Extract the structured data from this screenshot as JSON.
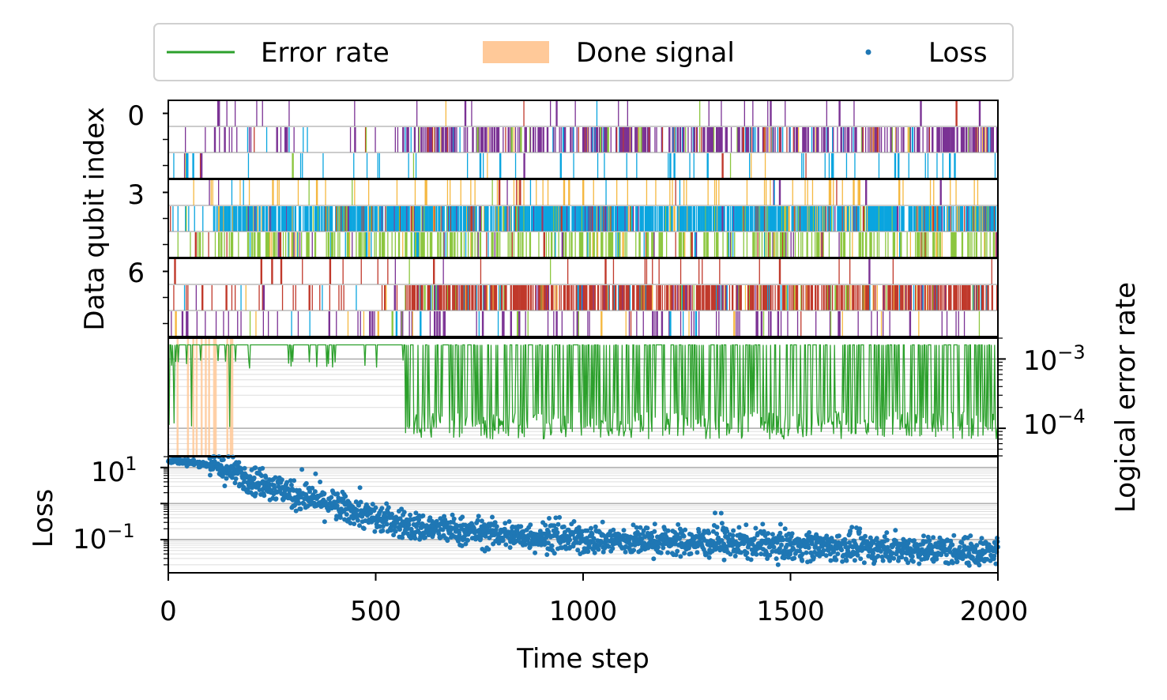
{
  "chart_data": [
    {
      "type": "raster",
      "panel": "data-qubit-activity",
      "ylabel": "Data qubit index",
      "yticks": [
        "0",
        "3",
        "6"
      ],
      "rows": 9,
      "xlim": [
        0,
        2000
      ],
      "category_colors": [
        "#7b3294",
        "#c0392b",
        "#f5b841",
        "#8cc63f",
        "#0aa5df"
      ],
      "rows_summary": [
        {
          "row": 0,
          "density": 0.03,
          "dominant": "#7b3294"
        },
        {
          "row": 1,
          "density": 0.55,
          "dominant": "#7b3294",
          "dense_from": 570
        },
        {
          "row": 2,
          "density": 0.06,
          "dominant": "#0aa5df"
        },
        {
          "row": 3,
          "density": 0.07,
          "dominant": "#f5b841"
        },
        {
          "row": 4,
          "density": 0.85,
          "dominant": "#0aa5df",
          "dense_from": 120
        },
        {
          "row": 5,
          "density": 0.35,
          "dominant": "#8cc63f",
          "dense_from": 120
        },
        {
          "row": 6,
          "density": 0.03,
          "dominant": "#c0392b"
        },
        {
          "row": 7,
          "density": 0.7,
          "dominant": "#c0392b",
          "dense_from": 570
        },
        {
          "row": 8,
          "density": 0.12,
          "dominant": "#7b3294"
        }
      ]
    },
    {
      "type": "line",
      "panel": "logical-error-rate",
      "ylabel": "Logical error rate",
      "yscale": "log",
      "ylim": [
        4e-05,
        0.002
      ],
      "yticks": [
        {
          "value": 0.001,
          "base": "10",
          "exp": "−3"
        },
        {
          "value": 0.0001,
          "base": "10",
          "exp": "−4"
        }
      ],
      "series": [
        {
          "name": "Error rate",
          "color": "#2ca02c",
          "upper": 0.0016,
          "phase1_low": 0.0008,
          "phase1_end": 570,
          "phase2_low": 0.0001
        }
      ],
      "done_signal": {
        "name": "Done signal",
        "color": "#ffc999",
        "steps": [
          20,
          45,
          58,
          66,
          78,
          88,
          96,
          108,
          112,
          140,
          148,
          152
        ]
      }
    },
    {
      "type": "scatter",
      "panel": "loss",
      "xlabel": "Time step",
      "ylabel": "Loss",
      "yscale": "log",
      "ylim": [
        0.012,
        20
      ],
      "xlim": [
        0,
        2000
      ],
      "xticks": [
        "0",
        "500",
        "1000",
        "1500",
        "2000"
      ],
      "yticks": [
        {
          "value": 10,
          "base": "10",
          "exp": "1"
        },
        {
          "value": 0.1,
          "base": "10",
          "exp": "−1"
        }
      ],
      "series": [
        {
          "name": "Loss",
          "color": "#1f77b4",
          "trend": [
            [
              0,
              16
            ],
            [
              100,
              12
            ],
            [
              200,
              5
            ],
            [
              300,
              1.8
            ],
            [
              400,
              0.9
            ],
            [
              500,
              0.4
            ],
            [
              600,
              0.22
            ],
            [
              800,
              0.14
            ],
            [
              1000,
              0.1
            ],
            [
              1200,
              0.09
            ],
            [
              1500,
              0.07
            ],
            [
              1800,
              0.055
            ],
            [
              2000,
              0.045
            ]
          ]
        }
      ]
    }
  ],
  "legend": {
    "items": [
      {
        "label": "Error rate",
        "color": "#2ca02c",
        "kind": "line"
      },
      {
        "label": "Done signal",
        "color": "#ffc999",
        "kind": "patch"
      },
      {
        "label": "Loss",
        "color": "#1f77b4",
        "kind": "point"
      }
    ]
  }
}
